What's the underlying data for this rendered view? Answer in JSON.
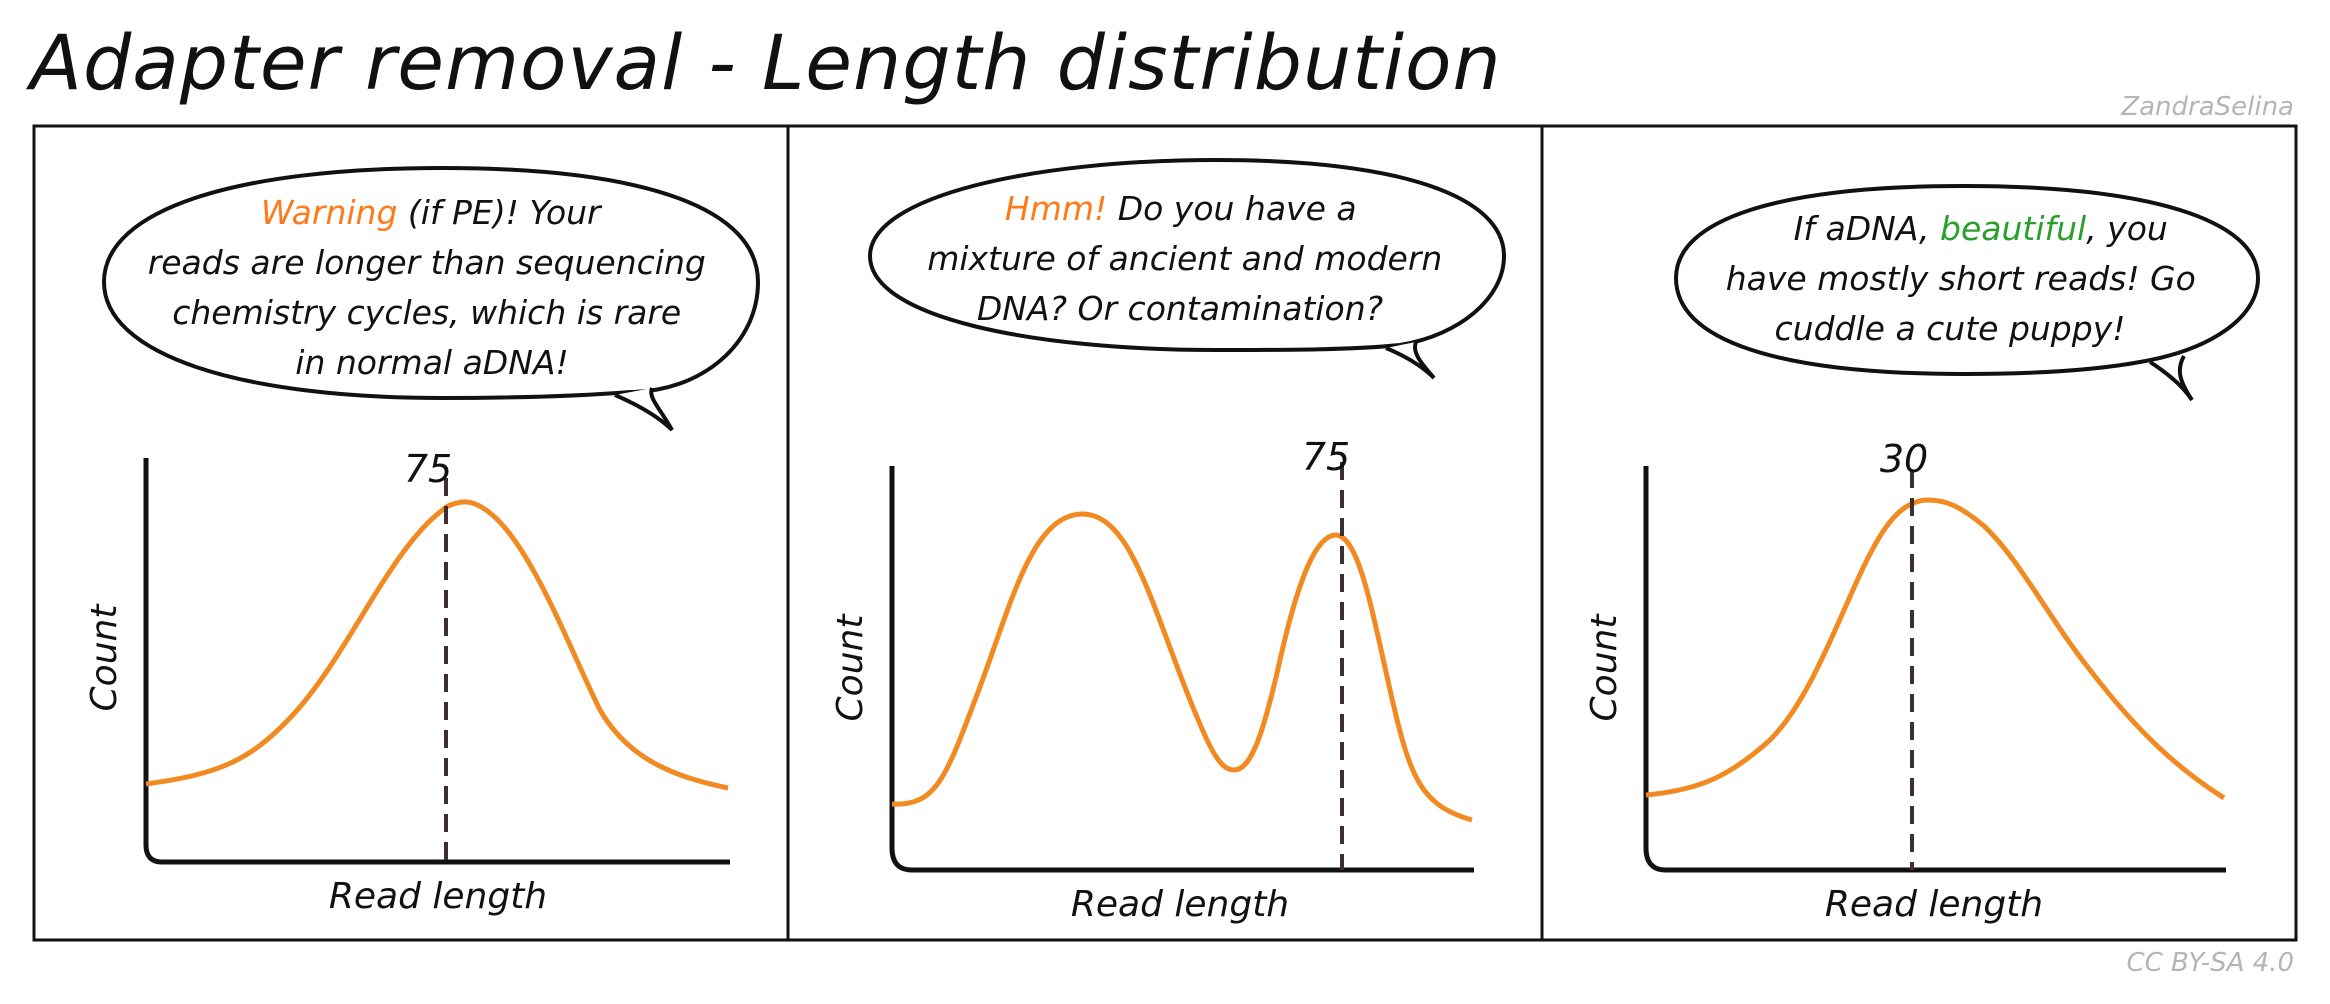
{
  "title": "Adapter removal - Length distribution",
  "author": "ZandraSelina",
  "license": "CC BY-SA 4.0",
  "colors": {
    "curve": "#f28a22",
    "highlight_orange": "#ff7a1a",
    "highlight_green": "#2aa02a",
    "dashed": "#3b2f2f"
  },
  "panels": [
    {
      "bubble": {
        "line1_highlight": "Warning",
        "line1_rest": " (if PE)! Your",
        "line2": "reads are longer than sequencing",
        "line3": "chemistry cycles, which is rare",
        "line4": "in normal aDNA!"
      },
      "peak_label": "75",
      "xlabel": "Read length",
      "ylabel": "Count"
    },
    {
      "bubble": {
        "line1_highlight": "Hmm!",
        "line1_rest": " Do you have a",
        "line2": "mixture of ancient and modern",
        "line3": "DNA? Or contamination?"
      },
      "peak_label": "75",
      "xlabel": "Read length",
      "ylabel": "Count"
    },
    {
      "bubble": {
        "line1_pre": "If aDNA, ",
        "line1_highlight": "beautiful",
        "line1_post": ", you",
        "line2": "have mostly short reads! Go",
        "line3": "cuddle a cute puppy!"
      },
      "peak_label": "30",
      "xlabel": "Read length",
      "ylabel": "Count"
    }
  ]
}
